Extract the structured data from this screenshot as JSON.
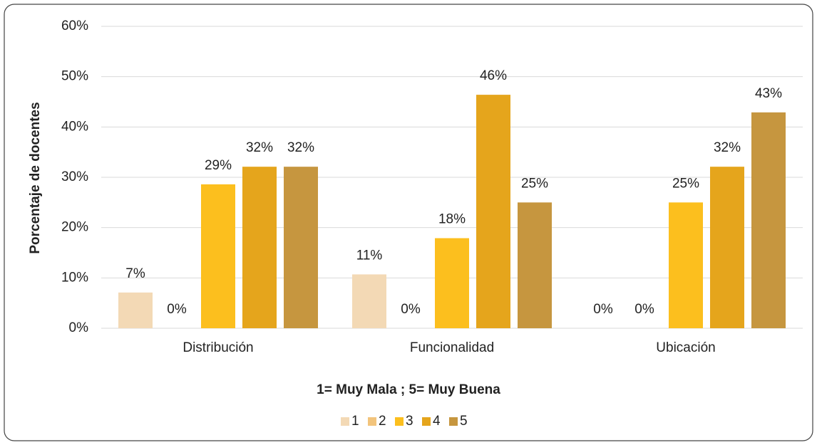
{
  "chart_data": {
    "type": "bar",
    "y_label": "Porcentaje de docentes",
    "x_label": "1= Muy Mala ; 5= Muy Buena",
    "categories": [
      "Distribución",
      "Funcionalidad",
      "Ubicación"
    ],
    "series": [
      {
        "name": "1",
        "color": "#f3d9b5",
        "values": [
          7.1,
          10.7,
          0
        ],
        "value_labels": [
          "7%",
          "11%",
          "0%"
        ]
      },
      {
        "name": "2",
        "color": "#f2c47c",
        "values": [
          0,
          0,
          0
        ],
        "value_labels": [
          "0%",
          "0%",
          "0%"
        ]
      },
      {
        "name": "3",
        "color": "#fcbf1e",
        "values": [
          28.6,
          17.9,
          25
        ],
        "value_labels": [
          "29%",
          "18%",
          "25%"
        ]
      },
      {
        "name": "4",
        "color": "#e5a51c",
        "values": [
          32.1,
          46.4,
          32.1
        ],
        "value_labels": [
          "32%",
          "46%",
          "32%"
        ]
      },
      {
        "name": "5",
        "color": "#c6963f",
        "values": [
          32.1,
          25,
          42.9
        ],
        "value_labels": [
          "32%",
          "25%",
          "43%"
        ]
      }
    ],
    "ylim": [
      0,
      60
    ],
    "yticks": [
      {
        "value": 0,
        "label": "0%"
      },
      {
        "value": 10,
        "label": "10%"
      },
      {
        "value": 20,
        "label": "20%"
      },
      {
        "value": 30,
        "label": "30%"
      },
      {
        "value": 40,
        "label": "40%"
      },
      {
        "value": 50,
        "label": "50%"
      },
      {
        "value": 60,
        "label": "60%"
      }
    ],
    "grid": true,
    "legend": "bottom"
  }
}
